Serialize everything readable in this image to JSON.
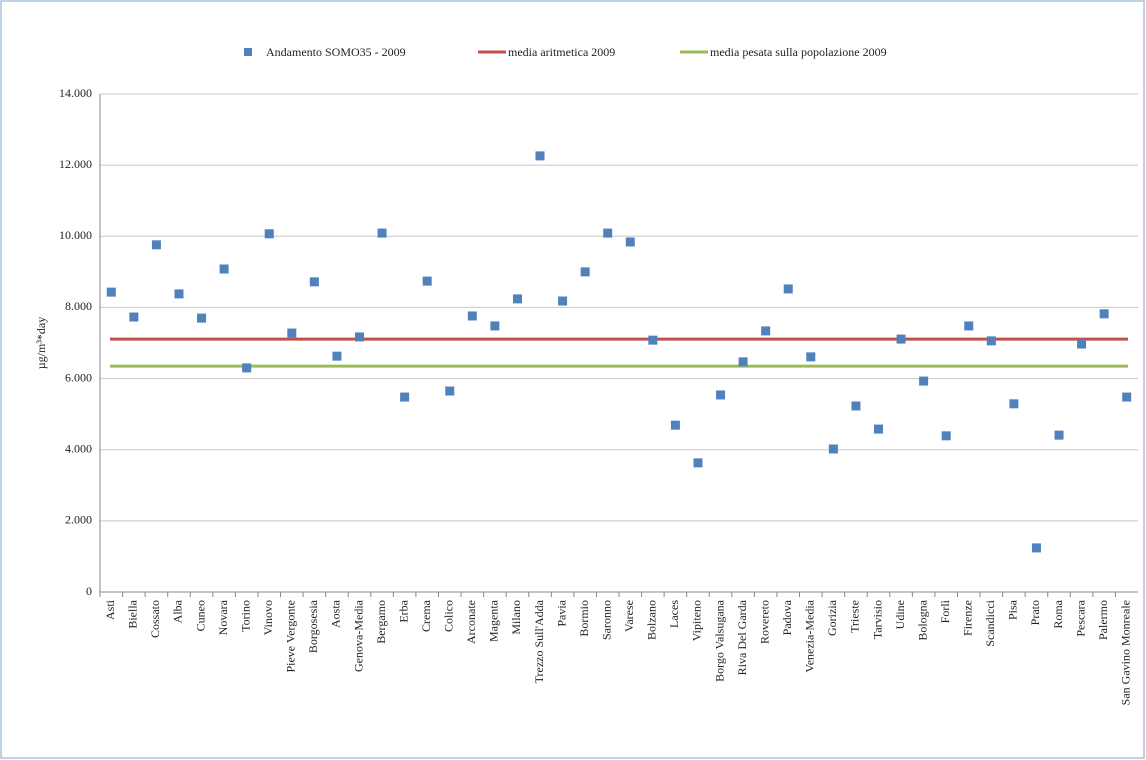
{
  "chart_data": {
    "type": "scatter",
    "y_label": "µg/m³*day",
    "categories": [
      "Asti",
      "Biella",
      "Cossato",
      "Alba",
      "Cuneo",
      "Novara",
      "Torino",
      "Vinovo",
      "Pieve Vergonte",
      "Borgosesia",
      "Aosta",
      "Genova-Media",
      "Bergamo",
      "Erba",
      "Crema",
      "Colico",
      "Arconate",
      "Magenta",
      "Milano",
      "Trezzo Sull'Adda",
      "Pavia",
      "Bormio",
      "Saronno",
      "Varese",
      "Bolzano",
      "Laces",
      "Vipiteno",
      "Borgo Valsugana",
      "Riva Del Garda",
      "Rovereto",
      "Padova",
      "Venezia-Media",
      "Gorizia",
      "Trieste",
      "Tarvisio",
      "Udine",
      "Bologna",
      "Forlì",
      "Firenze",
      "Scandicci",
      "Pisa",
      "Prato",
      "Roma",
      "Pescara",
      "Palermo",
      "San Gavino Monreale"
    ],
    "series": [
      {
        "name": "Andamento SOMO35 - 2009",
        "color": "#4f81bd",
        "values": [
          8430,
          7730,
          9760,
          8380,
          7700,
          9080,
          6300,
          10070,
          7280,
          8720,
          6630,
          7170,
          10090,
          5480,
          8740,
          5650,
          7760,
          7480,
          8240,
          12260,
          8180,
          9000,
          10090,
          9840,
          7080,
          4690,
          3630,
          5540,
          6470,
          7340,
          8520,
          6610,
          4020,
          5230,
          4580,
          7110,
          5930,
          4390,
          7480,
          7060,
          5290,
          1240,
          4410,
          6970,
          7820,
          5480
        ]
      }
    ],
    "reference_lines": [
      {
        "name": "media aritmetica 2009",
        "color": "#c0504d",
        "value": 7110
      },
      {
        "name": "media pesata sulla popolazione 2009",
        "color": "#9bbb59",
        "value": 6350
      }
    ],
    "ylim": [
      0,
      14000
    ],
    "yticks": [
      0,
      {
        "value": 2000,
        "label": "2.000"
      },
      {
        "value": 4000,
        "label": "4.000"
      },
      {
        "value": 6000,
        "label": "6.000"
      },
      {
        "value": 8000,
        "label": "8.000"
      },
      {
        "value": 10000,
        "label": "10.000"
      },
      {
        "value": 12000,
        "label": "12.000"
      },
      {
        "value": 14000,
        "label": "14.000"
      }
    ],
    "grid": true
  }
}
